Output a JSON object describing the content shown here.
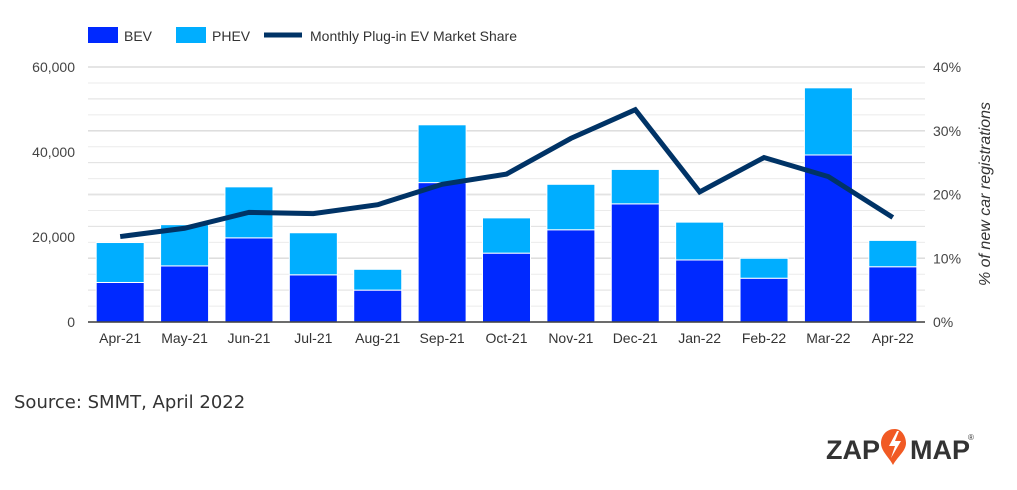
{
  "chart_data": {
    "type": "bar",
    "stacked": true,
    "categories": [
      "Apr-21",
      "May-21",
      "Jun-21",
      "Jul-21",
      "Aug-21",
      "Sep-21",
      "Oct-21",
      "Nov-21",
      "Dec-21",
      "Jan-22",
      "Feb-22",
      "Mar-22",
      "Apr-22"
    ],
    "series": [
      {
        "name": "BEV",
        "type": "bar",
        "axis": "left",
        "color": "#0029ff",
        "values": [
          9300,
          13200,
          19800,
          11100,
          7500,
          32800,
          16200,
          21700,
          27800,
          14600,
          10300,
          39300,
          13000
        ]
      },
      {
        "name": "PHEV",
        "type": "bar",
        "axis": "left",
        "color": "#00aeff",
        "values": [
          9400,
          9700,
          12000,
          9900,
          4900,
          13600,
          8300,
          10700,
          8100,
          8900,
          4700,
          15800,
          6200
        ]
      },
      {
        "name": "Monthly Plug-in EV Market Share",
        "type": "line",
        "axis": "right",
        "color": "#003366",
        "values": [
          13.4,
          14.7,
          17.2,
          17.0,
          18.4,
          21.6,
          23.2,
          28.8,
          33.3,
          20.4,
          25.8,
          22.8,
          16.4
        ]
      }
    ],
    "y_left": {
      "range": [
        0,
        60000
      ],
      "ticks": [
        "0",
        "20,000",
        "40,000",
        "60,000"
      ],
      "label": ""
    },
    "y_right": {
      "range": [
        0,
        40
      ],
      "ticks": [
        "0%",
        "10%",
        "20%",
        "30%",
        "40%"
      ],
      "label": "% of new car registrations"
    },
    "grid": true,
    "legend_position": "top-left"
  },
  "source": "Source: SMMT, April 2022",
  "logo": {
    "text_left": "ZAP",
    "text_right": "MAP",
    "accent": "#f15a24"
  }
}
